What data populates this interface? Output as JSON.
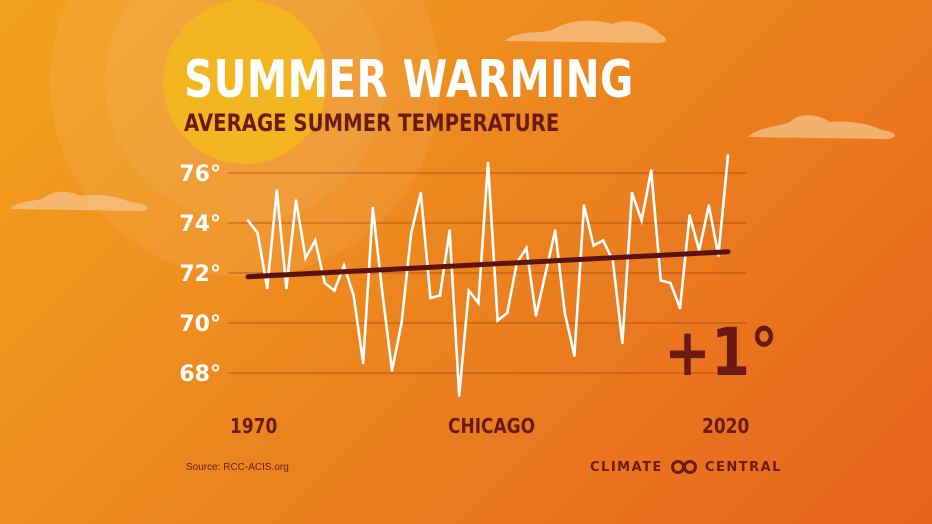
{
  "title": "SUMMER WARMING",
  "subtitle": "AVERAGE SUMMER TEMPERATURE",
  "location": "CHICAGO",
  "change_label": "+1°",
  "source": "Source: RCC-ACIS.org",
  "brand": {
    "left": "CLIMATE",
    "right": "CENTRAL",
    "logo_icon": "linked-rings-icon"
  },
  "colors": {
    "background_start": "#f2a21c",
    "background_end": "#e8631c",
    "accent": "#6b1a12",
    "line": "#ffffff",
    "trend": "#5c1210"
  },
  "chart_data": {
    "type": "line",
    "title": "SUMMER WARMING",
    "subtitle": "AVERAGE SUMMER TEMPERATURE",
    "xlabel": "CHICAGO",
    "ylabel": "",
    "x_tick_labels": [
      "1970",
      "2020"
    ],
    "y_ticks": [
      68,
      70,
      72,
      74,
      76
    ],
    "y_tick_labels": [
      "68°",
      "70°",
      "72°",
      "74°",
      "76°"
    ],
    "ylim": [
      67,
      77
    ],
    "xlim": [
      1970,
      2020
    ],
    "grid": true,
    "series": [
      {
        "x": [
          1970,
          1971,
          1972,
          1973,
          1974,
          1975,
          1976,
          1977,
          1978,
          1979,
          1980,
          1981,
          1982,
          1983,
          1984,
          1985,
          1986,
          1987,
          1988,
          1989,
          1990,
          1991,
          1992,
          1993,
          1994,
          1995,
          1996,
          1997,
          1998,
          1999,
          2000,
          2001,
          2002,
          2003,
          2004,
          2005,
          2006,
          2007,
          2008,
          2009,
          2010,
          2011,
          2012,
          2013,
          2014,
          2015,
          2016,
          2017,
          2018,
          2019,
          2020
        ],
        "values": [
          74.1,
          73.6,
          71.4,
          75.3,
          71.4,
          74.9,
          72.6,
          73.3,
          71.6,
          71.3,
          72.3,
          71.1,
          68.4,
          74.6,
          71.2,
          68.1,
          70.0,
          73.6,
          75.2,
          71.0,
          71.1,
          73.7,
          67.1,
          71.3,
          70.8,
          76.4,
          70.1,
          70.4,
          72.4,
          73.0,
          70.3,
          72.0,
          73.7,
          70.4,
          68.7,
          74.7,
          73.1,
          73.3,
          72.5,
          69.2,
          75.2,
          74.1,
          76.1,
          71.7,
          71.6,
          70.6,
          74.3,
          72.9,
          74.7,
          72.7,
          76.7
        ]
      }
    ],
    "trend": {
      "start": [
        1970,
        71.85
      ],
      "end": [
        2020,
        72.85
      ],
      "change": "+1°"
    }
  }
}
